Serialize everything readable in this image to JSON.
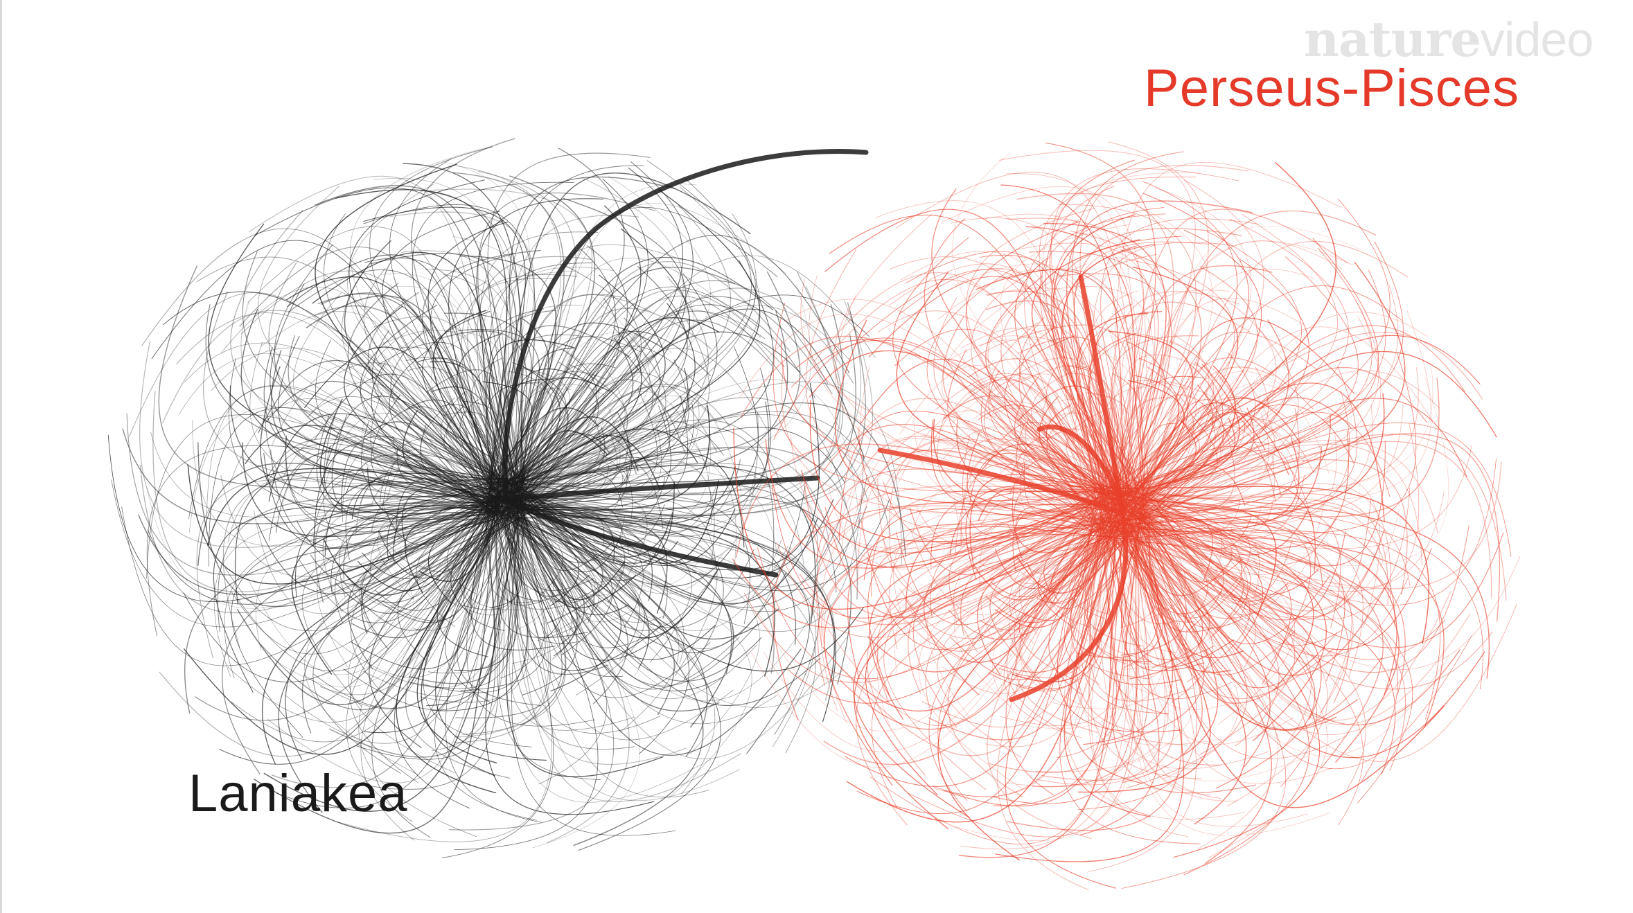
{
  "watermark": {
    "brand": "nature",
    "suffix": "video"
  },
  "labels": {
    "laniakea": "Laniakea",
    "perseus_pisces": "Perseus-Pisces"
  },
  "colors": {
    "background": "#ffffff",
    "laniakea_flow": "#1a1a1a",
    "perseus_flow": "#e8402a",
    "perseus_label": "#e5392a",
    "watermark": "#e4e4e4"
  }
}
